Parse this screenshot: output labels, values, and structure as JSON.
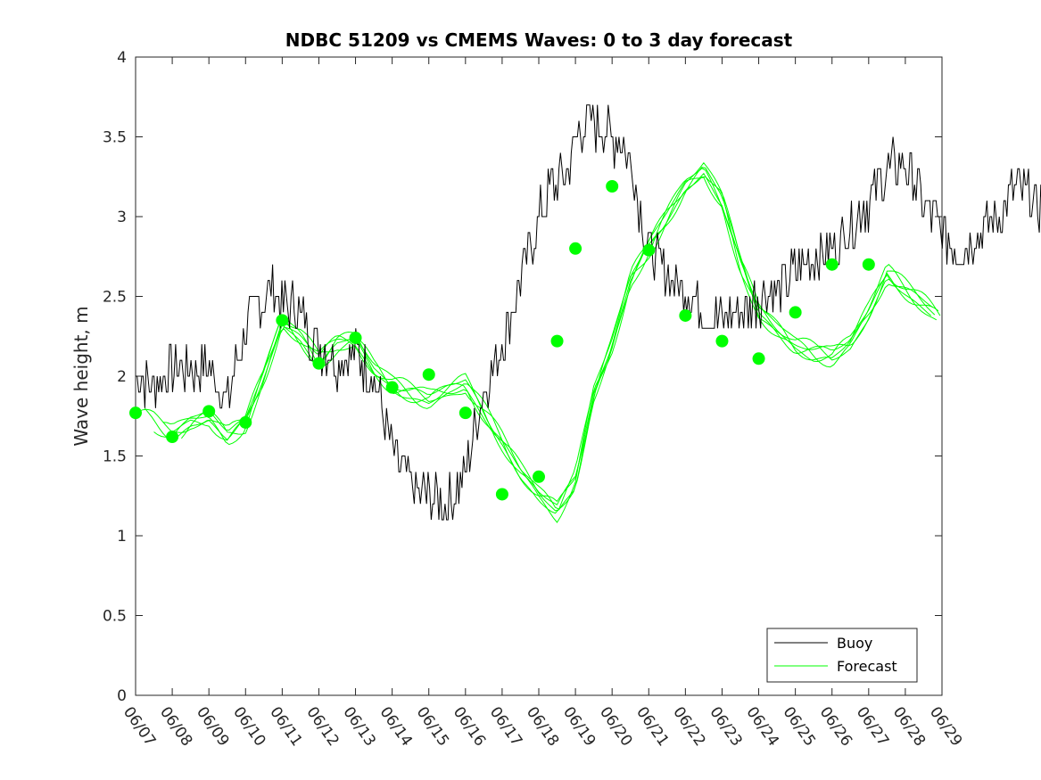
{
  "chart_data": {
    "type": "line",
    "title": "NDBC 51209 vs CMEMS Waves: 0 to 3 day forecast",
    "xlabel": "",
    "ylabel": "Wave height, m",
    "ylim": [
      0,
      4
    ],
    "xlim": [
      "06/07",
      "06/29"
    ],
    "x_ticks": [
      "06/07",
      "06/08",
      "06/09",
      "06/10",
      "06/11",
      "06/12",
      "06/13",
      "06/14",
      "06/15",
      "06/16",
      "06/17",
      "06/18",
      "06/19",
      "06/20",
      "06/21",
      "06/22",
      "06/23",
      "06/24",
      "06/25",
      "06/26",
      "06/27",
      "06/28",
      "06/29"
    ],
    "y_ticks": [
      "0",
      "0.5",
      "1",
      "1.5",
      "2",
      "2.5",
      "3",
      "3.5",
      "4"
    ],
    "grid": false,
    "legend": {
      "placement": "bottom-right",
      "entries": [
        "Buoy",
        "Forecast"
      ]
    },
    "colors": {
      "buoy": "#000000",
      "forecast": "#00ff00"
    },
    "buoy": {
      "name": "Buoy",
      "day": [
        0,
        0.5,
        1,
        1.5,
        2,
        2.5,
        3,
        3.5,
        3.8,
        4,
        4.3,
        4.6,
        5,
        5.5,
        6,
        6.5,
        7,
        7.5,
        8,
        8.5,
        9,
        9.5,
        10,
        10.3,
        10.7,
        11,
        11.4,
        11.8,
        12,
        12.3,
        12.7,
        13,
        13.3,
        13.6,
        13.8,
        14,
        14.3,
        14.6,
        15,
        15.5,
        16,
        16.5,
        17,
        17.5,
        18,
        18.5,
        19,
        19.5,
        20,
        20.5,
        21,
        21.5,
        22,
        22.5,
        23,
        23.5,
        24,
        24.5,
        25,
        25.5,
        26,
        26.3
      ],
      "value": [
        2.0,
        1.95,
        2.05,
        2.05,
        2.05,
        1.85,
        2.3,
        2.5,
        2.55,
        2.45,
        2.45,
        2.35,
        2.2,
        2.1,
        2.15,
        2.0,
        1.5,
        1.3,
        1.25,
        1.2,
        1.4,
        1.9,
        2.2,
        2.45,
        2.75,
        3.0,
        3.2,
        3.3,
        3.5,
        3.6,
        3.55,
        3.5,
        3.45,
        3.3,
        3.0,
        2.8,
        2.7,
        2.6,
        2.55,
        2.4,
        2.35,
        2.4,
        2.5,
        2.55,
        2.65,
        2.75,
        2.8,
        2.95,
        3.1,
        3.3,
        3.35,
        3.1,
        2.9,
        2.8,
        2.9,
        3.0,
        3.2,
        3.1,
        3.05,
        3.1,
        3.15,
        2.9
      ]
    },
    "forecast": {
      "name": "Forecast",
      "day": [
        0,
        0.5,
        1,
        1.5,
        2,
        2.5,
        3,
        3.5,
        4,
        4.5,
        5,
        5.5,
        6,
        6.5,
        7,
        7.5,
        8,
        8.5,
        9,
        9.5,
        10,
        10.5,
        11,
        11.5,
        12,
        12.5,
        13,
        13.5,
        14,
        14.5,
        15,
        15.5,
        16,
        16.5,
        17,
        17.5,
        18,
        18.5,
        19,
        19.5,
        20,
        20.5,
        21,
        21.5,
        22
      ],
      "value": [
        1.77,
        1.72,
        1.63,
        1.72,
        1.75,
        1.62,
        1.7,
        2.0,
        2.35,
        2.25,
        2.1,
        2.2,
        2.22,
        2.05,
        1.95,
        1.9,
        1.85,
        1.9,
        1.95,
        1.78,
        1.6,
        1.4,
        1.25,
        1.15,
        1.35,
        1.9,
        2.2,
        2.6,
        2.8,
        3.0,
        3.2,
        3.3,
        3.1,
        2.7,
        2.4,
        2.3,
        2.2,
        2.15,
        2.12,
        2.2,
        2.4,
        2.65,
        2.55,
        2.45,
        2.35
      ]
    },
    "forecast_starts": {
      "day": [
        0,
        1,
        2,
        3,
        4,
        5,
        6,
        7,
        8,
        9,
        10,
        11,
        11.5,
        12,
        13,
        14,
        15,
        16,
        17,
        18,
        19,
        20
      ],
      "value": [
        1.77,
        1.62,
        1.78,
        1.71,
        2.35,
        2.08,
        2.24,
        1.93,
        2.01,
        1.77,
        1.26,
        1.37,
        2.22,
        2.8,
        3.19,
        2.79,
        2.38,
        2.22,
        2.11,
        2.4,
        2.7,
        2.7
      ]
    }
  }
}
